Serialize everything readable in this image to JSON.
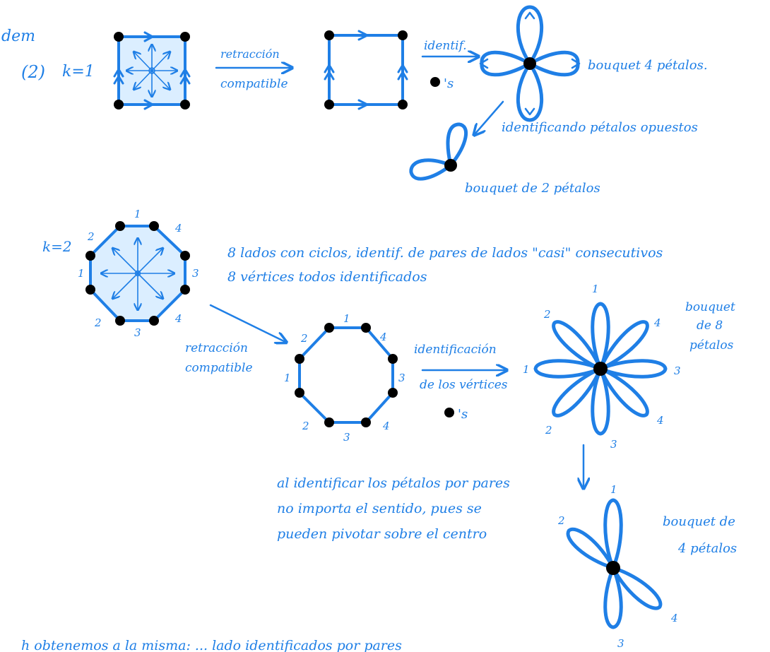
{
  "colors": {
    "ink": "#1f7fe6",
    "vertex": "#000000",
    "shade": "#dbeeff",
    "paper": "#ffffff"
  },
  "header": {
    "corner": "dem",
    "item": "(2)",
    "k1": "k=1",
    "k2": "k=2"
  },
  "row1": {
    "arrow1_top": "retracción",
    "arrow1_bottom": "compatible",
    "identif": "identif.",
    "pts": "'s",
    "bouquet4": "bouquet 4 pétalos.",
    "opposite": "identificando pétalos opuestos",
    "bouquet2": "bouquet de 2 pétalos"
  },
  "row2": {
    "note_line1": "8 lados con ciclos, identif. de pares de lados \"casi\" consecutivos",
    "note_line2": "8 vértices todos identificados",
    "arrow2_top": "retracción",
    "arrow2_bottom": "compatible",
    "ident_top": "identificación",
    "ident_bottom": "de los vértices",
    "pts": "'s",
    "bouquet8_line1": "bouquet",
    "bouquet8_line2": "de 8",
    "bouquet8_line3": "pétalos",
    "note2_line1": "al identificar los pétalos por pares",
    "note2_line2": "no importa el sentido, pues se",
    "note2_line3": "pueden pivotar sobre el centro",
    "bouquet4_line1": "bouquet de",
    "bouquet4_line2": "4 pétalos",
    "bottom": "h obtenemos a la misma: ... lado identificados por pares"
  },
  "edge_labels": {
    "oct1": [
      "1",
      "2",
      "4",
      "1",
      "3",
      "2",
      "3",
      "4"
    ],
    "oct2": [
      "2",
      "1",
      "4",
      "3",
      "1",
      "2",
      "3",
      "4"
    ],
    "flower8": [
      "1",
      "2",
      "4",
      "1",
      "3",
      "2",
      "3",
      "4"
    ],
    "flower4": [
      "1",
      "2",
      "4",
      "3"
    ]
  }
}
